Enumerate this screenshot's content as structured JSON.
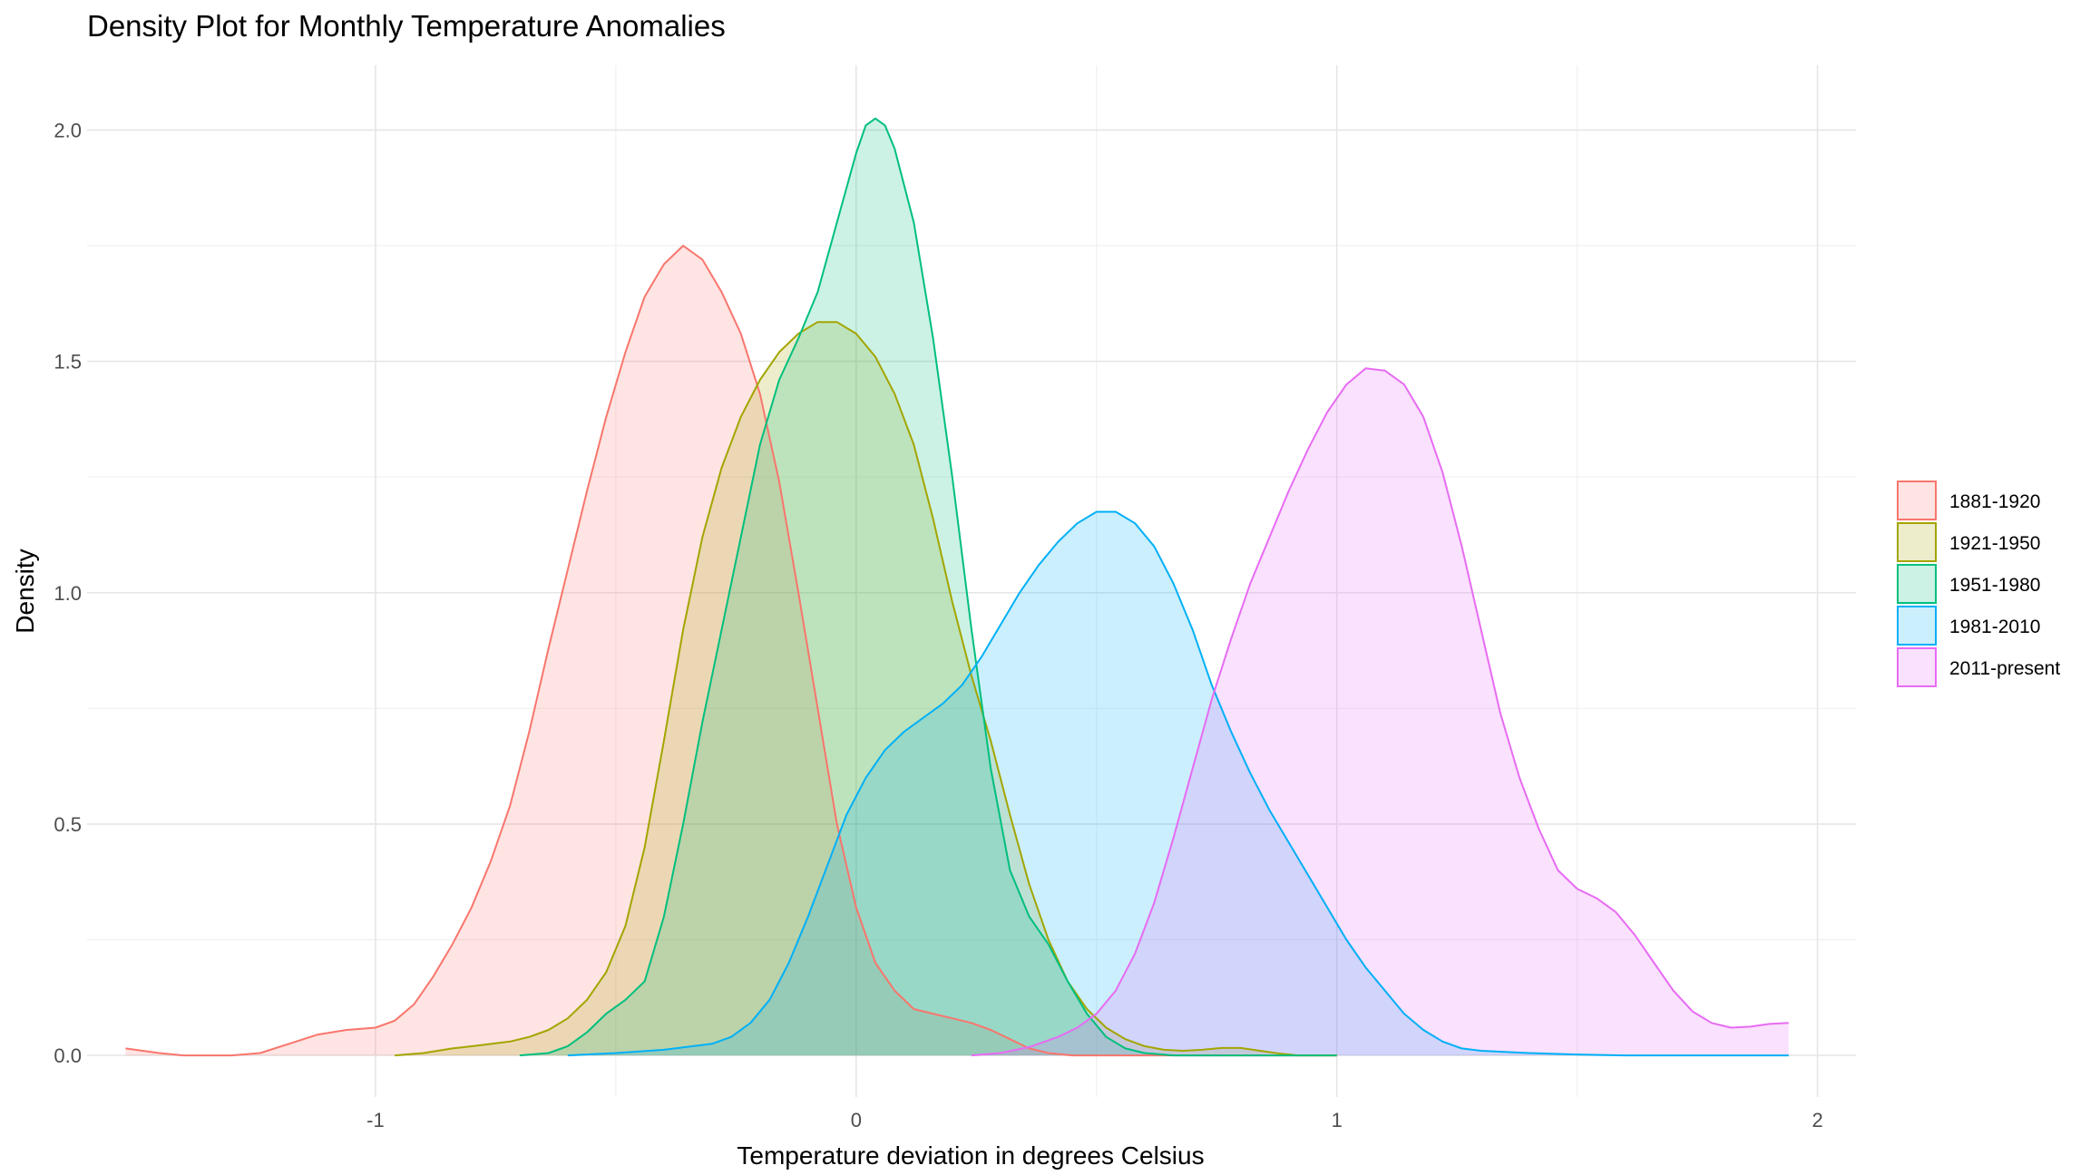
{
  "chart_data": {
    "type": "area",
    "title": "Density Plot for Monthly Temperature Anomalies",
    "xlabel": "Temperature deviation in degrees Celsius",
    "ylabel": "Density",
    "xlim": [
      -1.6,
      2.08
    ],
    "ylim": [
      -0.09,
      2.14
    ],
    "x_ticks": [
      -1,
      0,
      1,
      2
    ],
    "x_tick_labels": [
      "-1",
      "0",
      "1",
      "2"
    ],
    "y_ticks": [
      0.0,
      0.5,
      1.0,
      1.5,
      2.0
    ],
    "y_tick_labels": [
      "0.0",
      "0.5",
      "1.0",
      "1.5",
      "2.0"
    ],
    "grid": true,
    "legend_position": "right",
    "fill_opacity": 0.2,
    "series": [
      {
        "name": "1881-1920",
        "color": "#F8766D",
        "points": [
          [
            -1.52,
            0.015
          ],
          [
            -1.45,
            0.005
          ],
          [
            -1.4,
            0.0
          ],
          [
            -1.3,
            0.0
          ],
          [
            -1.24,
            0.005
          ],
          [
            -1.18,
            0.025
          ],
          [
            -1.12,
            0.045
          ],
          [
            -1.06,
            0.055
          ],
          [
            -1.0,
            0.06
          ],
          [
            -0.96,
            0.075
          ],
          [
            -0.92,
            0.11
          ],
          [
            -0.88,
            0.17
          ],
          [
            -0.84,
            0.24
          ],
          [
            -0.8,
            0.32
          ],
          [
            -0.76,
            0.42
          ],
          [
            -0.72,
            0.54
          ],
          [
            -0.68,
            0.7
          ],
          [
            -0.64,
            0.88
          ],
          [
            -0.6,
            1.05
          ],
          [
            -0.56,
            1.22
          ],
          [
            -0.52,
            1.38
          ],
          [
            -0.48,
            1.52
          ],
          [
            -0.44,
            1.64
          ],
          [
            -0.4,
            1.71
          ],
          [
            -0.36,
            1.75
          ],
          [
            -0.32,
            1.72
          ],
          [
            -0.28,
            1.65
          ],
          [
            -0.24,
            1.56
          ],
          [
            -0.2,
            1.43
          ],
          [
            -0.16,
            1.24
          ],
          [
            -0.12,
            1.0
          ],
          [
            -0.08,
            0.75
          ],
          [
            -0.04,
            0.5
          ],
          [
            0.0,
            0.32
          ],
          [
            0.04,
            0.2
          ],
          [
            0.08,
            0.14
          ],
          [
            0.12,
            0.1
          ],
          [
            0.16,
            0.09
          ],
          [
            0.2,
            0.08
          ],
          [
            0.24,
            0.07
          ],
          [
            0.28,
            0.055
          ],
          [
            0.32,
            0.035
          ],
          [
            0.36,
            0.015
          ],
          [
            0.4,
            0.005
          ],
          [
            0.45,
            0.0
          ],
          [
            0.6,
            0.0
          ],
          [
            0.8,
            0.0
          ],
          [
            1.0,
            0.0
          ]
        ]
      },
      {
        "name": "1921-1950",
        "color": "#A3A500",
        "points": [
          [
            -0.96,
            0.0
          ],
          [
            -0.9,
            0.005
          ],
          [
            -0.84,
            0.015
          ],
          [
            -0.78,
            0.022
          ],
          [
            -0.72,
            0.03
          ],
          [
            -0.68,
            0.04
          ],
          [
            -0.64,
            0.055
          ],
          [
            -0.6,
            0.08
          ],
          [
            -0.56,
            0.12
          ],
          [
            -0.52,
            0.18
          ],
          [
            -0.48,
            0.28
          ],
          [
            -0.44,
            0.45
          ],
          [
            -0.4,
            0.68
          ],
          [
            -0.36,
            0.92
          ],
          [
            -0.32,
            1.12
          ],
          [
            -0.28,
            1.27
          ],
          [
            -0.24,
            1.38
          ],
          [
            -0.2,
            1.46
          ],
          [
            -0.16,
            1.52
          ],
          [
            -0.12,
            1.56
          ],
          [
            -0.08,
            1.585
          ],
          [
            -0.04,
            1.585
          ],
          [
            0.0,
            1.56
          ],
          [
            0.04,
            1.51
          ],
          [
            0.08,
            1.43
          ],
          [
            0.12,
            1.32
          ],
          [
            0.16,
            1.16
          ],
          [
            0.2,
            0.98
          ],
          [
            0.24,
            0.82
          ],
          [
            0.28,
            0.68
          ],
          [
            0.32,
            0.52
          ],
          [
            0.36,
            0.37
          ],
          [
            0.4,
            0.25
          ],
          [
            0.44,
            0.16
          ],
          [
            0.48,
            0.1
          ],
          [
            0.52,
            0.06
          ],
          [
            0.56,
            0.035
          ],
          [
            0.6,
            0.02
          ],
          [
            0.64,
            0.012
          ],
          [
            0.68,
            0.01
          ],
          [
            0.72,
            0.012
          ],
          [
            0.76,
            0.016
          ],
          [
            0.8,
            0.016
          ],
          [
            0.84,
            0.01
          ],
          [
            0.88,
            0.004
          ],
          [
            0.92,
            0.0
          ],
          [
            1.0,
            0.0
          ]
        ]
      },
      {
        "name": "1951-1980",
        "color": "#00BF7D",
        "points": [
          [
            -0.7,
            0.0
          ],
          [
            -0.64,
            0.005
          ],
          [
            -0.6,
            0.02
          ],
          [
            -0.56,
            0.05
          ],
          [
            -0.52,
            0.09
          ],
          [
            -0.48,
            0.12
          ],
          [
            -0.44,
            0.16
          ],
          [
            -0.4,
            0.3
          ],
          [
            -0.36,
            0.5
          ],
          [
            -0.32,
            0.72
          ],
          [
            -0.28,
            0.92
          ],
          [
            -0.24,
            1.12
          ],
          [
            -0.2,
            1.32
          ],
          [
            -0.16,
            1.46
          ],
          [
            -0.12,
            1.55
          ],
          [
            -0.08,
            1.65
          ],
          [
            -0.04,
            1.8
          ],
          [
            0.0,
            1.95
          ],
          [
            0.02,
            2.01
          ],
          [
            0.04,
            2.025
          ],
          [
            0.06,
            2.01
          ],
          [
            0.08,
            1.96
          ],
          [
            0.12,
            1.8
          ],
          [
            0.16,
            1.55
          ],
          [
            0.2,
            1.25
          ],
          [
            0.24,
            0.92
          ],
          [
            0.28,
            0.62
          ],
          [
            0.32,
            0.4
          ],
          [
            0.36,
            0.3
          ],
          [
            0.4,
            0.24
          ],
          [
            0.44,
            0.16
          ],
          [
            0.48,
            0.09
          ],
          [
            0.52,
            0.04
          ],
          [
            0.56,
            0.015
          ],
          [
            0.6,
            0.005
          ],
          [
            0.66,
            0.0
          ],
          [
            0.8,
            0.0
          ],
          [
            1.0,
            0.0
          ]
        ]
      },
      {
        "name": "1981-2010",
        "color": "#00B0F6",
        "points": [
          [
            -0.6,
            0.0
          ],
          [
            -0.5,
            0.005
          ],
          [
            -0.4,
            0.012
          ],
          [
            -0.3,
            0.025
          ],
          [
            -0.26,
            0.04
          ],
          [
            -0.22,
            0.07
          ],
          [
            -0.18,
            0.12
          ],
          [
            -0.14,
            0.2
          ],
          [
            -0.1,
            0.3
          ],
          [
            -0.06,
            0.41
          ],
          [
            -0.02,
            0.52
          ],
          [
            0.02,
            0.6
          ],
          [
            0.06,
            0.66
          ],
          [
            0.1,
            0.7
          ],
          [
            0.14,
            0.73
          ],
          [
            0.18,
            0.76
          ],
          [
            0.22,
            0.8
          ],
          [
            0.26,
            0.86
          ],
          [
            0.3,
            0.93
          ],
          [
            0.34,
            1.0
          ],
          [
            0.38,
            1.06
          ],
          [
            0.42,
            1.11
          ],
          [
            0.46,
            1.15
          ],
          [
            0.5,
            1.175
          ],
          [
            0.54,
            1.175
          ],
          [
            0.58,
            1.15
          ],
          [
            0.62,
            1.1
          ],
          [
            0.66,
            1.02
          ],
          [
            0.7,
            0.92
          ],
          [
            0.74,
            0.8
          ],
          [
            0.78,
            0.7
          ],
          [
            0.82,
            0.61
          ],
          [
            0.86,
            0.53
          ],
          [
            0.9,
            0.46
          ],
          [
            0.94,
            0.39
          ],
          [
            0.98,
            0.32
          ],
          [
            1.02,
            0.25
          ],
          [
            1.06,
            0.19
          ],
          [
            1.1,
            0.14
          ],
          [
            1.14,
            0.09
          ],
          [
            1.18,
            0.055
          ],
          [
            1.22,
            0.03
          ],
          [
            1.26,
            0.015
          ],
          [
            1.3,
            0.01
          ],
          [
            1.4,
            0.005
          ],
          [
            1.5,
            0.002
          ],
          [
            1.6,
            0.0
          ],
          [
            1.8,
            0.0
          ],
          [
            1.94,
            0.0
          ]
        ]
      },
      {
        "name": "2011-present",
        "color": "#E76BF3",
        "points": [
          [
            0.24,
            0.0
          ],
          [
            0.3,
            0.005
          ],
          [
            0.36,
            0.018
          ],
          [
            0.42,
            0.04
          ],
          [
            0.46,
            0.06
          ],
          [
            0.5,
            0.09
          ],
          [
            0.54,
            0.14
          ],
          [
            0.58,
            0.22
          ],
          [
            0.62,
            0.33
          ],
          [
            0.66,
            0.47
          ],
          [
            0.7,
            0.62
          ],
          [
            0.74,
            0.77
          ],
          [
            0.78,
            0.9
          ],
          [
            0.82,
            1.02
          ],
          [
            0.86,
            1.12
          ],
          [
            0.9,
            1.22
          ],
          [
            0.94,
            1.31
          ],
          [
            0.98,
            1.39
          ],
          [
            1.02,
            1.45
          ],
          [
            1.06,
            1.485
          ],
          [
            1.1,
            1.48
          ],
          [
            1.14,
            1.45
          ],
          [
            1.18,
            1.38
          ],
          [
            1.22,
            1.26
          ],
          [
            1.26,
            1.1
          ],
          [
            1.3,
            0.92
          ],
          [
            1.34,
            0.74
          ],
          [
            1.38,
            0.6
          ],
          [
            1.42,
            0.49
          ],
          [
            1.46,
            0.4
          ],
          [
            1.5,
            0.36
          ],
          [
            1.54,
            0.34
          ],
          [
            1.58,
            0.31
          ],
          [
            1.62,
            0.26
          ],
          [
            1.66,
            0.2
          ],
          [
            1.7,
            0.14
          ],
          [
            1.74,
            0.095
          ],
          [
            1.78,
            0.07
          ],
          [
            1.82,
            0.06
          ],
          [
            1.86,
            0.062
          ],
          [
            1.9,
            0.068
          ],
          [
            1.94,
            0.07
          ]
        ]
      }
    ]
  }
}
